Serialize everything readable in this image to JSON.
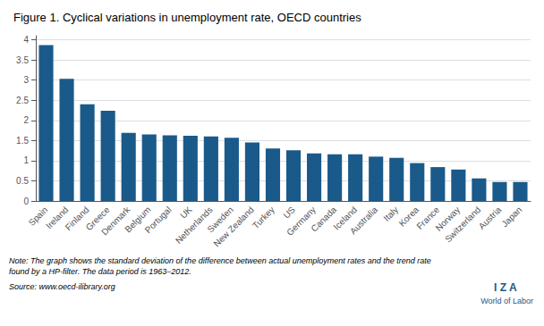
{
  "chart_data": {
    "type": "bar",
    "title": "Figure 1. Cyclical variations in unemployment rate, OECD countries",
    "categories": [
      "Spain",
      "Ireland",
      "Finland",
      "Greece",
      "Denmark",
      "Belgium",
      "Portugal",
      "UK",
      "Netherlands",
      "Sweden",
      "New Zealand",
      "Turkey",
      "US",
      "Germany",
      "Canada",
      "Iceland",
      "Australia",
      "Italy",
      "Korea",
      "France",
      "Norway",
      "Switzerland",
      "Austria",
      "Japan"
    ],
    "values": [
      3.87,
      3.03,
      2.4,
      2.24,
      1.69,
      1.65,
      1.63,
      1.62,
      1.6,
      1.57,
      1.45,
      1.3,
      1.26,
      1.18,
      1.16,
      1.16,
      1.1,
      1.07,
      0.94,
      0.84,
      0.78,
      0.56,
      0.47,
      0.47
    ],
    "color": "#1a5a8a",
    "ylim": [
      0,
      4.1
    ],
    "yticks": [
      0,
      0.5,
      1,
      1.5,
      2,
      2.5,
      3,
      3.5,
      4
    ],
    "grid": true,
    "annotations": [
      "Note: The graph shows the standard deviation of the difference between actual unemployment rates and the trend rate\nfound by a HP-filter. The data period is 1963–2012.",
      "Source: www.oecd-ilibrary.org",
      "I Z A",
      "World of Labor"
    ]
  }
}
